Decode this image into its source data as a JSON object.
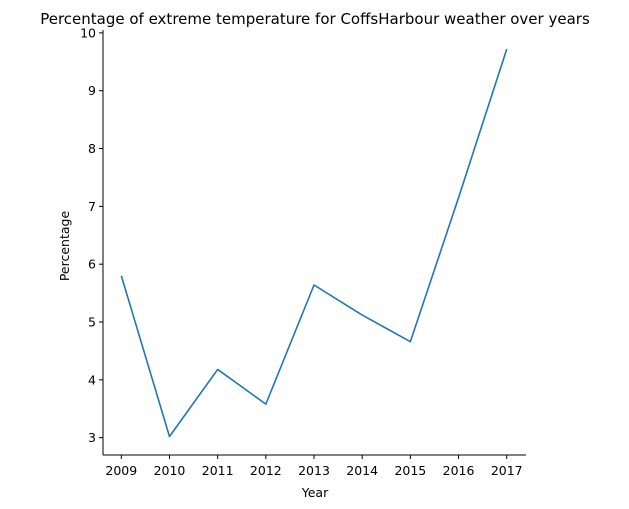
{
  "chart_data": {
    "type": "line",
    "title": "Percentage of extreme temperature for CoffsHarbour weather over years",
    "xlabel": "Year",
    "ylabel": "Percentage",
    "x_ticks": [
      "2009",
      "2010",
      "2011",
      "2012",
      "2013",
      "2014",
      "2015",
      "2016",
      "2017"
    ],
    "y_ticks": [
      "3",
      "4",
      "5",
      "6",
      "7",
      "8",
      "9",
      "10"
    ],
    "xlim": [
      2008.62,
      2017.4
    ],
    "ylim": [
      2.7,
      10.05
    ],
    "series": [
      {
        "x": [
          2009,
          2010,
          2011,
          2012,
          2013,
          2014,
          2015,
          2016,
          2017
        ],
        "values": [
          5.8,
          3.02,
          4.18,
          3.58,
          5.64,
          5.12,
          4.66,
          7.15,
          9.72
        ],
        "color": "#1f77b4"
      }
    ],
    "grid": false,
    "spines": [
      "left",
      "bottom"
    ]
  }
}
